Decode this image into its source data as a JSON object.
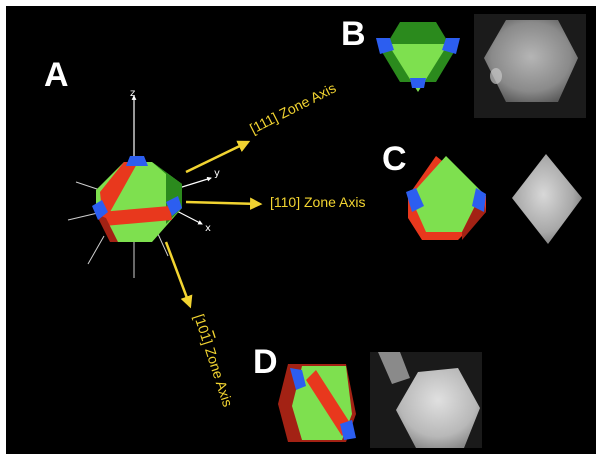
{
  "panels": {
    "a": "A",
    "b": "B",
    "c": "C",
    "d": "D"
  },
  "axes": {
    "z": "z",
    "y": "y",
    "x": "x"
  },
  "zone_axes": {
    "z111": "[111] Zone Axis",
    "z110": "[110] Zone Axis",
    "z101": "[10",
    "z101_bar": "1",
    "z101_tail": "] Zone Axis"
  },
  "colors": {
    "background": "#000000",
    "face_green": "#7ee04f",
    "face_green_dark": "#2b8a1d",
    "face_red": "#e8381d",
    "face_red_dark": "#a32214",
    "vertex_blue": "#2c5ef0",
    "arrow_yellow": "#f2d431"
  }
}
